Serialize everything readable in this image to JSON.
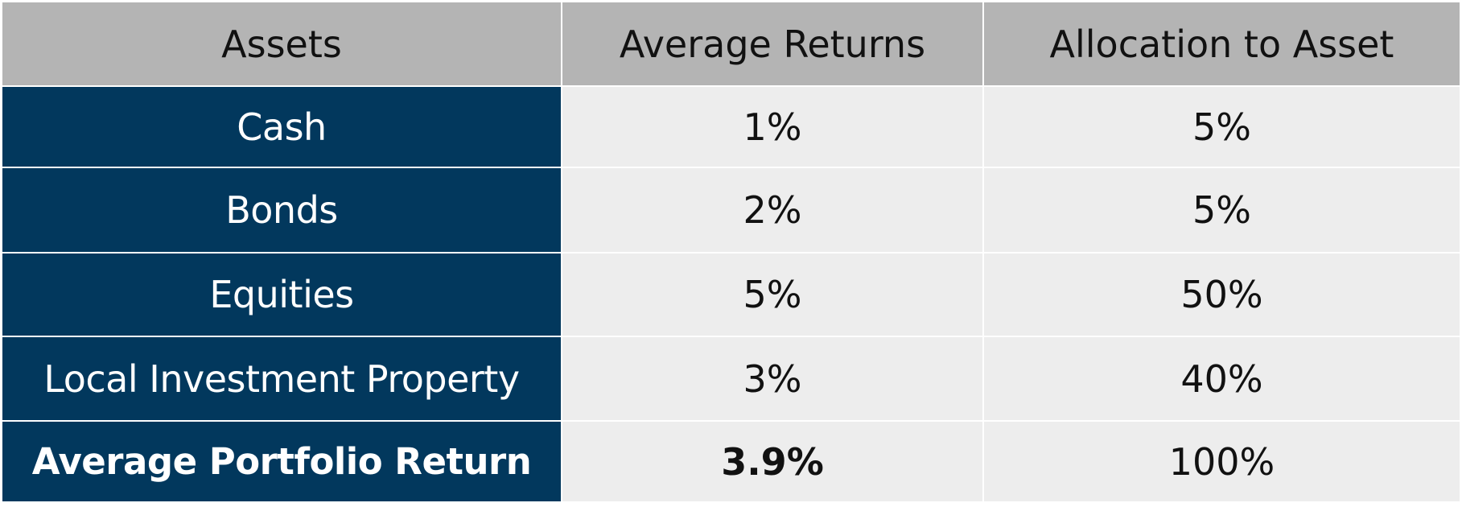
{
  "colors": {
    "header_bg": "#b4b4b4",
    "asset_column_bg": "#02385d",
    "value_cell_bg": "#ededed",
    "grid_line": "#ffffff"
  },
  "chart_data": {
    "type": "table",
    "columns": [
      "Assets",
      "Average Returns",
      "Allocation to Asset"
    ],
    "rows": [
      {
        "asset": "Cash",
        "average_return": "1%",
        "allocation": "5%"
      },
      {
        "asset": "Bonds",
        "average_return": "2%",
        "allocation": "5%"
      },
      {
        "asset": "Equities",
        "average_return": "5%",
        "allocation": "50%"
      },
      {
        "asset": "Local Investment Property",
        "average_return": "3%",
        "allocation": "40%"
      }
    ],
    "summary": {
      "label": "Average Portfolio Return",
      "average_return": "3.9%",
      "allocation": "100%"
    }
  }
}
